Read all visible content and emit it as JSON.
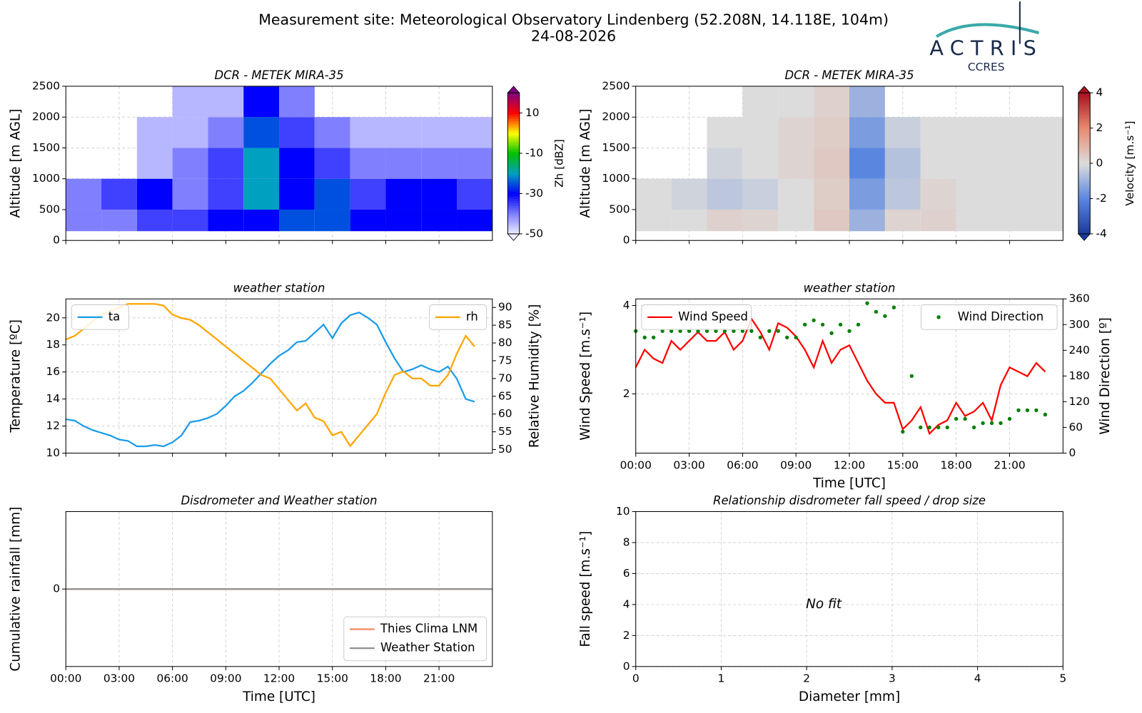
{
  "header": {
    "title": "Measurement site: Meteorological Observatory Lindenberg (52.208N, 14.118E, 104m)",
    "date": "24-08-2026",
    "logo": "ACTRIS",
    "logo_sub": "CCRES"
  },
  "chart_data": [
    {
      "type": "heatmap",
      "title": "DCR - METEK MIRA-35",
      "ylabel": "Altitude [m AGL]",
      "colorbar_label": "Zh [dBZ]",
      "xlim": [
        0,
        24
      ],
      "xticks": [
        0,
        3,
        6,
        9,
        12,
        15,
        18,
        21
      ],
      "ylim": [
        0,
        2500
      ],
      "yticks": [
        0,
        500,
        1000,
        1500,
        2000,
        2500
      ],
      "grid": true,
      "x_edges": [
        0,
        2,
        4,
        6,
        8,
        10,
        12,
        14,
        16,
        18,
        20,
        22,
        24
      ],
      "y_edges": [
        150,
        500,
        1000,
        1500,
        2000,
        2500
      ],
      "values": [
        [
          -40,
          -40,
          -35,
          -35,
          -30,
          -30,
          -25,
          -25,
          -30,
          -30,
          -30,
          -30
        ],
        [
          -40,
          -35,
          -30,
          -40,
          -35,
          -20,
          -30,
          -25,
          -35,
          -30,
          -30,
          -35
        ],
        [
          null,
          null,
          -45,
          -40,
          -35,
          -20,
          -30,
          -35,
          -40,
          -40,
          -40,
          -40
        ],
        [
          null,
          null,
          -45,
          -45,
          -40,
          -25,
          -35,
          -40,
          -45,
          -45,
          -45,
          -45
        ],
        [
          null,
          null,
          null,
          -45,
          -45,
          -30,
          -40,
          null,
          null,
          null,
          null,
          null
        ]
      ],
      "clim": [
        -50,
        20
      ],
      "cticks": [
        -50,
        -30,
        -10,
        10
      ],
      "colormap": [
        "#eeeeff",
        "#8080ff",
        "#0000ff",
        "#00a0c0",
        "#00c000",
        "#ffff00",
        "#ff0000",
        "#800080"
      ]
    },
    {
      "type": "heatmap",
      "title": "DCR - METEK MIRA-35",
      "ylabel": "Altitude [m AGL]",
      "colorbar_label": "Velocity [m.s⁻¹]",
      "xlim": [
        0,
        24
      ],
      "xticks": [
        0,
        3,
        6,
        9,
        12,
        15,
        18,
        21
      ],
      "ylim": [
        0,
        2500
      ],
      "yticks": [
        0,
        500,
        1000,
        1500,
        2000,
        2500
      ],
      "grid": true,
      "x_edges": [
        0,
        2,
        4,
        6,
        8,
        10,
        12,
        14,
        16,
        18,
        20,
        22,
        24
      ],
      "y_edges": [
        150,
        500,
        1000,
        1500,
        2000,
        2500
      ],
      "values": [
        [
          0,
          0,
          0.3,
          0.2,
          0,
          0.5,
          -1,
          0.2,
          0.3,
          0,
          0,
          0
        ],
        [
          0,
          -0.2,
          -0.5,
          -0.3,
          0,
          0.4,
          -1.5,
          -0.5,
          0.2,
          0,
          0,
          0
        ],
        [
          null,
          null,
          -0.2,
          0,
          0.2,
          0.5,
          -2,
          -0.6,
          0,
          0,
          0,
          0
        ],
        [
          null,
          null,
          0,
          0,
          0.2,
          0.4,
          -1.5,
          -0.3,
          0,
          0,
          0,
          0
        ],
        [
          null,
          null,
          null,
          0,
          0,
          0.3,
          -1,
          null,
          null,
          null,
          null,
          null
        ]
      ],
      "clim": [
        -4,
        4
      ],
      "cticks": [
        -4,
        -2,
        0,
        2,
        4
      ],
      "colormap": [
        "#1a3a9c",
        "#5b86e0",
        "#dcdcdc",
        "#e88a70",
        "#a81020"
      ]
    },
    {
      "type": "line",
      "title": "weather station",
      "ylabel": "Temperature [ºC]",
      "y2label": "Relative Humidity [%]",
      "xlim": [
        0,
        24
      ],
      "xticks": [
        0,
        3,
        6,
        9,
        12,
        15,
        18,
        21
      ],
      "ylim": [
        10,
        21.4
      ],
      "yticks": [
        10,
        12,
        14,
        16,
        18,
        20
      ],
      "y2lim": [
        49,
        92.4
      ],
      "y2ticks": [
        50,
        55,
        60,
        65,
        70,
        75,
        80,
        85,
        90
      ],
      "grid": true,
      "x": [
        0,
        0.5,
        1,
        1.5,
        2,
        2.5,
        3,
        3.5,
        4,
        4.5,
        5,
        5.5,
        6,
        6.5,
        7,
        7.5,
        8,
        8.5,
        9,
        9.5,
        10,
        10.5,
        11,
        11.5,
        12,
        12.5,
        13,
        13.5,
        14,
        14.5,
        15,
        15.5,
        16,
        16.5,
        17,
        17.5,
        18,
        18.5,
        19,
        19.5,
        20,
        20.5,
        21,
        21.5,
        22,
        22.5,
        23
      ],
      "series": [
        {
          "name": "ta",
          "color": "#1a9bea",
          "legend": "upper left",
          "values": [
            12.5,
            12.4,
            12.0,
            11.7,
            11.5,
            11.3,
            11.0,
            10.9,
            10.5,
            10.5,
            10.6,
            10.5,
            10.8,
            11.3,
            12.3,
            12.4,
            12.6,
            12.9,
            13.5,
            14.2,
            14.6,
            15.2,
            15.9,
            16.6,
            17.2,
            17.6,
            18.2,
            18.3,
            18.9,
            19.5,
            18.5,
            19.6,
            20.2,
            20.4,
            20.0,
            19.5,
            18.2,
            17.0,
            16.0,
            16.2,
            16.5,
            16.2,
            16.0,
            16.4,
            15.5,
            14.0,
            13.8
          ]
        },
        {
          "name": "rh",
          "color": "#ffa500",
          "axis": "y2",
          "legend": "upper right",
          "values": [
            81,
            82,
            84,
            86,
            88,
            89,
            90,
            91,
            91,
            91,
            91,
            90.5,
            88,
            87,
            86.5,
            85,
            83,
            81,
            79,
            77,
            75,
            73,
            71,
            70,
            67,
            64,
            61,
            63,
            59,
            58,
            54,
            55,
            51,
            54,
            57,
            60,
            66,
            71,
            72,
            70,
            70,
            68,
            68,
            71,
            77,
            82,
            79
          ]
        }
      ]
    },
    {
      "type": "line",
      "title": "weather station",
      "ylabel": "Wind Speed [m.s⁻¹]",
      "y2label": "Wind Direction [º]",
      "xlabel": "Time [UTC]",
      "xlim": [
        0,
        24
      ],
      "xticks": [
        {
          "value": 0,
          "label": "00:00"
        },
        {
          "value": 3,
          "label": "03:00"
        },
        {
          "value": 6,
          "label": "06:00"
        },
        {
          "value": 9,
          "label": "09:00"
        },
        {
          "value": 12,
          "label": "12:00"
        },
        {
          "value": 15,
          "label": "15:00"
        },
        {
          "value": 18,
          "label": "18:00"
        },
        {
          "value": 21,
          "label": "21:00"
        }
      ],
      "ylim": [
        0.66,
        4.15
      ],
      "yticks": [
        2,
        4
      ],
      "y2lim": [
        0,
        360
      ],
      "y2ticks": [
        0,
        60,
        120,
        180,
        240,
        300,
        360
      ],
      "grid": true,
      "x": [
        0,
        0.5,
        1,
        1.5,
        2,
        2.5,
        3,
        3.5,
        4,
        4.5,
        5,
        5.5,
        6,
        6.5,
        7,
        7.5,
        8,
        8.5,
        9,
        9.5,
        10,
        10.5,
        11,
        11.5,
        12,
        12.5,
        13,
        13.5,
        14,
        14.5,
        15,
        15.5,
        16,
        16.5,
        17,
        17.5,
        18,
        18.5,
        19,
        19.5,
        20,
        20.5,
        21,
        21.5,
        22,
        22.5,
        23
      ],
      "series": [
        {
          "name": "Wind Speed",
          "color": "#ff0000",
          "legend": "upper left",
          "values": [
            2.6,
            3.0,
            2.8,
            2.7,
            3.2,
            3.0,
            3.2,
            3.4,
            3.2,
            3.2,
            3.4,
            3.0,
            3.2,
            3.7,
            3.4,
            3.0,
            3.6,
            3.5,
            3.3,
            3.0,
            2.6,
            3.2,
            2.7,
            3.0,
            3.1,
            2.7,
            2.3,
            2.0,
            1.8,
            1.8,
            1.2,
            1.4,
            1.7,
            1.1,
            1.3,
            1.4,
            1.8,
            1.5,
            1.6,
            1.8,
            1.4,
            2.2,
            2.6,
            2.5,
            2.4,
            2.7,
            2.5
          ]
        },
        {
          "name": "Wind Direction",
          "color": "#008000",
          "axis": "y2",
          "style": "dots",
          "legend": "upper right",
          "values": [
            285,
            270,
            270,
            285,
            285,
            285,
            285,
            285,
            285,
            285,
            285,
            285,
            285,
            285,
            270,
            285,
            285,
            270,
            270,
            300,
            310,
            300,
            280,
            300,
            285,
            300,
            350,
            330,
            320,
            340,
            50,
            180,
            60,
            60,
            60,
            60,
            80,
            80,
            60,
            70,
            70,
            70,
            80,
            100,
            100,
            100,
            90
          ]
        }
      ]
    },
    {
      "type": "line",
      "title": "Disdrometer and Weather station",
      "ylabel": "Cumulative rainfall [mm]",
      "xlabel": "Time [UTC]",
      "xlim": [
        0,
        24
      ],
      "xticks": [
        {
          "value": 0,
          "label": "00:00"
        },
        {
          "value": 3,
          "label": "03:00"
        },
        {
          "value": 6,
          "label": "06:00"
        },
        {
          "value": 9,
          "label": "09:00"
        },
        {
          "value": 12,
          "label": "12:00"
        },
        {
          "value": 15,
          "label": "15:00"
        },
        {
          "value": 18,
          "label": "18:00"
        },
        {
          "value": 21,
          "label": "21:00"
        }
      ],
      "ylim": [
        -0.055,
        0.055
      ],
      "yticks": [
        0
      ],
      "grid": true,
      "x": [
        0,
        24
      ],
      "series": [
        {
          "name": "Thies Clima LNM",
          "color": "#f4895c",
          "legend": "lower right",
          "values": [
            0,
            0
          ]
        },
        {
          "name": "Weather Station",
          "color": "#909090",
          "legend": "lower right",
          "values": [
            0,
            0
          ]
        }
      ]
    },
    {
      "type": "scatter",
      "title": "Relationship disdrometer fall speed / drop size",
      "xlabel": "Diameter [mm]",
      "ylabel": "Fall speed [m.s⁻¹]",
      "annotation": "No fit",
      "xlim": [
        0,
        5
      ],
      "xticks": [
        0,
        1,
        2,
        3,
        4,
        5
      ],
      "ylim": [
        0,
        10
      ],
      "yticks": [
        0,
        2,
        4,
        6,
        8,
        10
      ],
      "grid": true
    }
  ]
}
